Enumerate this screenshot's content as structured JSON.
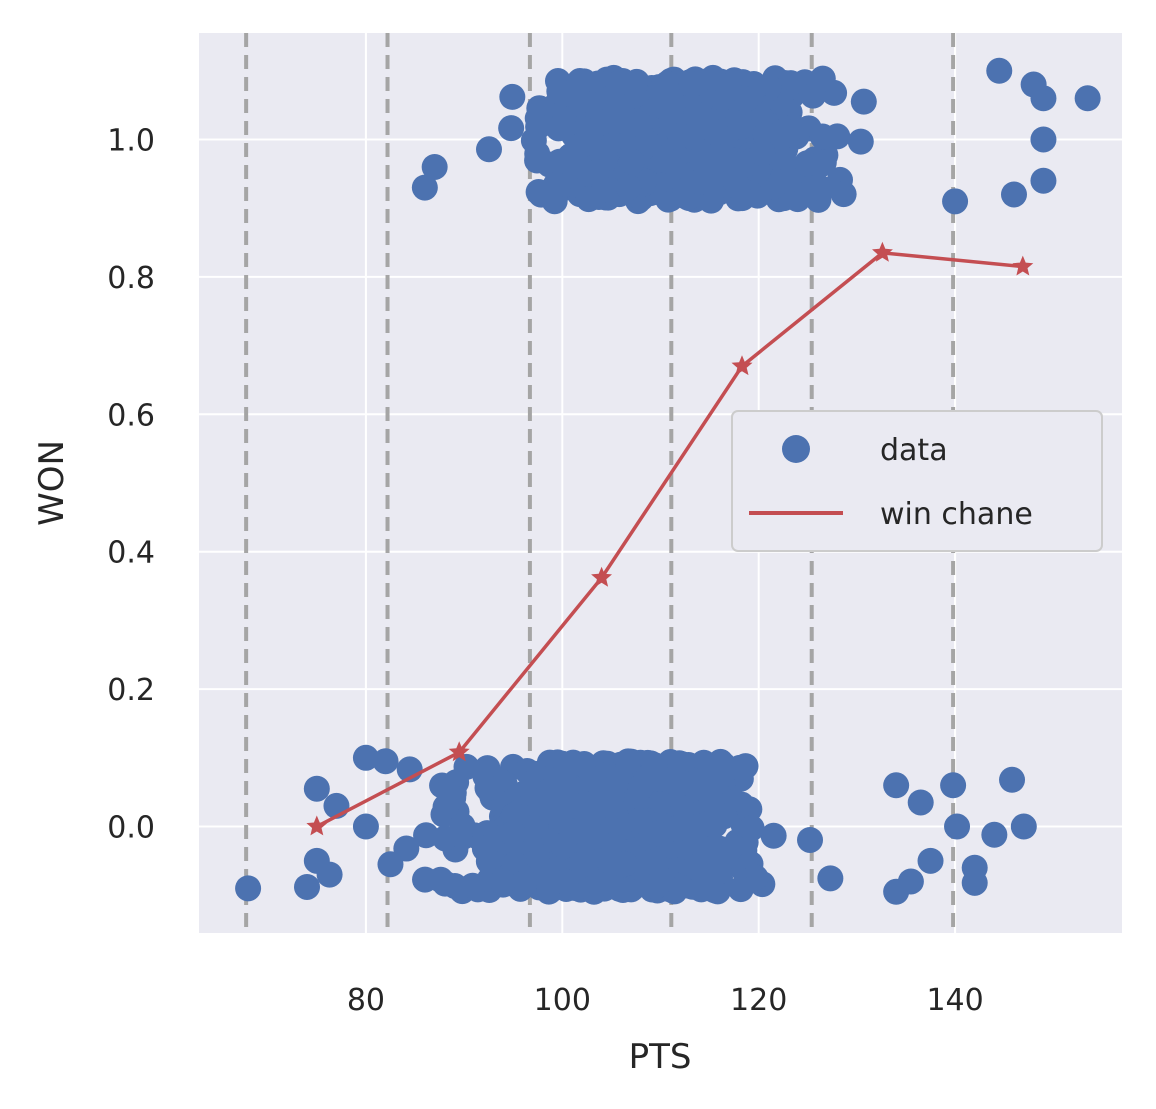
{
  "chart_data": {
    "type": "scatter",
    "xlabel": "PTS",
    "ylabel": "WON",
    "xlim": [
      63,
      157
    ],
    "ylim": [
      -0.155,
      1.155
    ],
    "xticks": [
      80,
      100,
      120,
      140
    ],
    "yticks": [
      0.0,
      0.2,
      0.4,
      0.6,
      0.8,
      1.0
    ],
    "xtick_labels": [
      "80",
      "100",
      "120",
      "140"
    ],
    "ytick_labels": [
      "0.0",
      "0.2",
      "0.4",
      "0.6",
      "0.8",
      "1.0"
    ],
    "grid": true,
    "bin_edges": [
      67.8,
      82.2,
      96.7,
      111.1,
      125.4,
      139.8
    ],
    "legend": {
      "placement": "center-right",
      "entries": [
        "data",
        "win chane"
      ]
    },
    "series": [
      {
        "name": "data",
        "kind": "scatter",
        "color": "#4c72b0",
        "description_groups": [
          {
            "won": 1,
            "x_range": [
              86,
              153
            ]
          },
          {
            "won": 0,
            "x_range": [
              67,
              147
            ]
          }
        ],
        "visible_outliers": [
          {
            "x": 68.0,
            "y": -0.09
          },
          {
            "x": 74.0,
            "y": -0.088
          },
          {
            "x": 75.0,
            "y": 0.055
          },
          {
            "x": 75.0,
            "y": -0.05
          },
          {
            "x": 76.3,
            "y": -0.07
          },
          {
            "x": 77.0,
            "y": 0.03
          },
          {
            "x": 80.0,
            "y": 0.1
          },
          {
            "x": 80.0,
            "y": 0.0
          },
          {
            "x": 82.0,
            "y": 0.095
          },
          {
            "x": 82.5,
            "y": -0.055
          },
          {
            "x": 86.0,
            "y": 0.93
          },
          {
            "x": 87.0,
            "y": 0.96
          },
          {
            "x": 134.0,
            "y": 0.06
          },
          {
            "x": 134.0,
            "y": -0.095
          },
          {
            "x": 135.5,
            "y": -0.08
          },
          {
            "x": 136.5,
            "y": 0.035
          },
          {
            "x": 137.5,
            "y": -0.05
          },
          {
            "x": 139.8,
            "y": 0.06
          },
          {
            "x": 140.2,
            "y": 0.0
          },
          {
            "x": 142.0,
            "y": -0.06
          },
          {
            "x": 142.0,
            "y": -0.082
          },
          {
            "x": 144.0,
            "y": -0.012
          },
          {
            "x": 145.8,
            "y": 0.068
          },
          {
            "x": 147.0,
            "y": 0.0
          },
          {
            "x": 140.0,
            "y": 0.91
          },
          {
            "x": 144.5,
            "y": 1.1
          },
          {
            "x": 146.0,
            "y": 0.92
          },
          {
            "x": 148.0,
            "y": 1.08
          },
          {
            "x": 149.0,
            "y": 1.06
          },
          {
            "x": 149.0,
            "y": 0.94
          },
          {
            "x": 149.0,
            "y": 1.0
          },
          {
            "x": 153.5,
            "y": 1.06
          }
        ]
      },
      {
        "name": "win chane",
        "kind": "line",
        "marker": "star",
        "color": "#c44e52",
        "x": [
          75.0,
          89.5,
          104.0,
          118.3,
          132.6,
          146.9
        ],
        "y": [
          0.0,
          0.108,
          0.362,
          0.67,
          0.835,
          0.815
        ]
      }
    ]
  }
}
